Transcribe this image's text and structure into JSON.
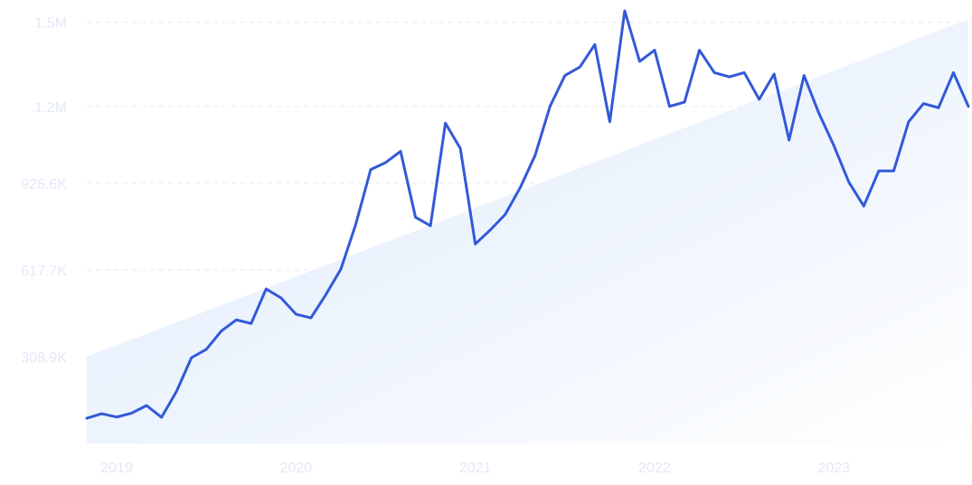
{
  "chart_data": {
    "type": "line",
    "title": "",
    "xlabel": "",
    "ylabel": "",
    "x_ticks": [
      "2019",
      "2020",
      "2021",
      "2022",
      "2023"
    ],
    "y_ticks": [
      "308.9K",
      "617.7K",
      "926.6K",
      "1.2M",
      "1.5M"
    ],
    "ylim": [
      0,
      1540000
    ],
    "xlim": [
      "2018-11",
      "2023-10"
    ],
    "grid": "horizontal-dashed",
    "colors": {
      "line": "#3259d9",
      "trend_fill_start": "#dce9fb",
      "trend_fill_end": "#ffffff",
      "tick_text": "#e4e8f8",
      "grid": "#e7ebf3"
    },
    "trend": {
      "start": 308900,
      "end": 1510000
    },
    "x": [
      "2018-11",
      "2018-12",
      "2019-01",
      "2019-02",
      "2019-03",
      "2019-04",
      "2019-05",
      "2019-06",
      "2019-07",
      "2019-08",
      "2019-09",
      "2019-10",
      "2019-11",
      "2019-12",
      "2020-01",
      "2020-02",
      "2020-03",
      "2020-04",
      "2020-05",
      "2020-06",
      "2020-07",
      "2020-08",
      "2020-09",
      "2020-10",
      "2020-11",
      "2020-12",
      "2021-01",
      "2021-02",
      "2021-03",
      "2021-04",
      "2021-05",
      "2021-06",
      "2021-07",
      "2021-08",
      "2021-09",
      "2021-10",
      "2021-11",
      "2021-12",
      "2022-01",
      "2022-02",
      "2022-03",
      "2022-04",
      "2022-05",
      "2022-06",
      "2022-07",
      "2022-08",
      "2022-09",
      "2022-10",
      "2022-11",
      "2022-12",
      "2023-01",
      "2023-02",
      "2023-03",
      "2023-04",
      "2023-05",
      "2023-06",
      "2023-07",
      "2023-08",
      "2023-09",
      "2023-10"
    ],
    "series": [
      {
        "values": [
          90000,
          106000,
          94000,
          108000,
          135000,
          93000,
          185000,
          305000,
          335000,
          400000,
          440000,
          427000,
          550000,
          518000,
          460000,
          447000,
          530000,
          620000,
          780000,
          975000,
          1000000,
          1040000,
          805000,
          775000,
          1140000,
          1050000,
          710000,
          760000,
          815000,
          910000,
          1025000,
          1200000,
          1310000,
          1340000,
          1420000,
          1145000,
          1540000,
          1360000,
          1400000,
          1200000,
          1215000,
          1400000,
          1320000,
          1305000,
          1320000,
          1225000,
          1315000,
          1080000,
          1310000,
          1175000,
          1060000,
          930000,
          845000,
          970000,
          970000,
          1145000,
          1210000,
          1195000,
          1320000,
          1200000
        ]
      }
    ]
  }
}
